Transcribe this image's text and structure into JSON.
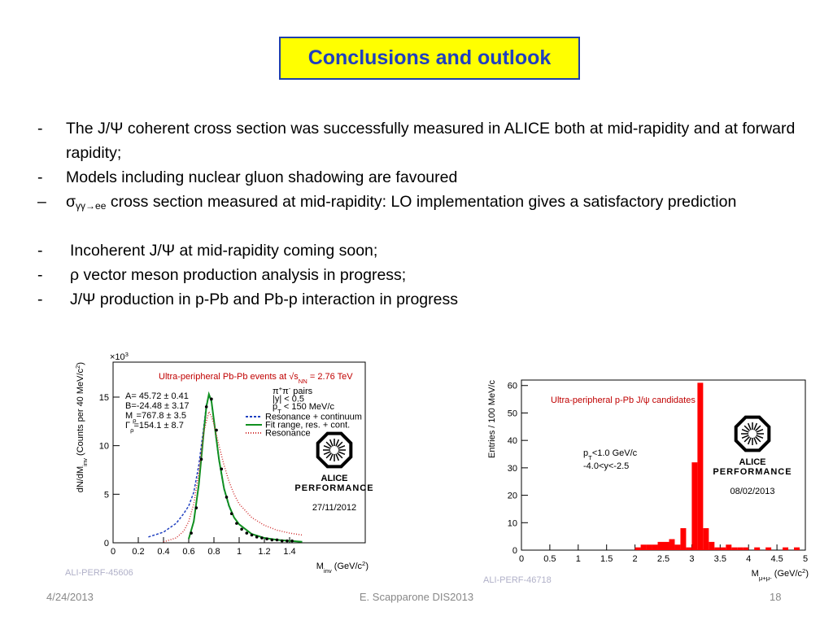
{
  "title": "Conclusions and outlook",
  "bullets": [
    {
      "marker": "-",
      "text": [
        [
          "The J/Ψ coherent cross section was successfully measured in ALICE both at mid-rapidity and at forward rapidity;",
          ""
        ]
      ]
    },
    {
      "marker": "-",
      "text": [
        [
          "Models including nuclear gluon shadowing are favoured",
          ""
        ]
      ]
    },
    {
      "marker": "–",
      "text": [
        [
          "σ",
          ""
        ],
        [
          "γγ→ee",
          "sub"
        ],
        [
          " cross section measured at mid-rapidity: LO implementation gives a satisfactory prediction",
          ""
        ]
      ]
    },
    {
      "marker": "-",
      "text": [
        [
          "Incoherent J/Ψ at mid-rapidity coming soon;",
          ""
        ]
      ]
    },
    {
      "marker": "-",
      "text": [
        [
          "ρ vector meson production analysis in progress;",
          ""
        ]
      ]
    },
    {
      "marker": "-",
      "text": [
        [
          "J/Ψ production in p-Pb and Pb-p interaction in progress",
          ""
        ]
      ]
    }
  ],
  "plots": [
    {
      "type": "line",
      "title": [
        [
          "Ultra-peripheral Pb-Pb events at √s",
          ""
        ],
        [
          "NN",
          "sub"
        ],
        [
          " = 2.76 TeV",
          ""
        ]
      ],
      "multiplier": [
        [
          "×10",
          ""
        ],
        [
          "3",
          "sup"
        ]
      ],
      "ylabel": [
        [
          "dN/dM",
          ""
        ],
        [
          "inv",
          "sub"
        ],
        [
          " (Counts per 40 MeV/c",
          ""
        ],
        [
          "2",
          "sup"
        ],
        [
          ")",
          ""
        ]
      ],
      "xlabel": [
        [
          "M",
          ""
        ],
        [
          "inv",
          "sub"
        ],
        [
          " (GeV/c",
          ""
        ],
        [
          "2",
          "sup"
        ],
        [
          ")",
          ""
        ]
      ],
      "xlim": [
        0,
        2
      ],
      "ylim": [
        0,
        18.6
      ],
      "xticks": [
        0,
        0.2,
        0.4,
        0.6,
        0.8,
        1,
        1.2,
        1.4
      ],
      "yticks": [
        0,
        5,
        10,
        15
      ],
      "stats": [
        [
          [
            "A= 45.72 ± 0.41",
            ""
          ]
        ],
        [
          [
            "B=-24.48 ± 3.17",
            ""
          ]
        ],
        [
          [
            "M",
            ""
          ],
          [
            "ρ",
            "sub"
          ],
          [
            "=767.8 ± 3.5",
            ""
          ]
        ],
        [
          [
            "Γ",
            ""
          ],
          [
            "ρ",
            "sub"
          ],
          [
            "=154.1 ± 8.7",
            ""
          ]
        ]
      ],
      "cuts": [
        [
          [
            "π",
            ""
          ],
          [
            "+",
            "sup"
          ],
          [
            "π",
            ""
          ],
          [
            "-",
            "sup"
          ],
          [
            " pairs",
            ""
          ]
        ],
        [
          [
            "|y| < 0.5",
            ""
          ]
        ],
        [
          [
            "p",
            ""
          ],
          [
            "T",
            "sub"
          ],
          [
            " < 150 MeV/c",
            ""
          ]
        ]
      ],
      "series": [
        {
          "name": "Resonance + continuum",
          "color": "#2040c0",
          "style": "dashed",
          "x": [
            0.28,
            0.4,
            0.5,
            0.56,
            0.6,
            0.64,
            0.68,
            0.72,
            0.74,
            0.76,
            0.78,
            0.8,
            0.84,
            0.88,
            0.92,
            0.96,
            1.0,
            1.1,
            1.2,
            1.3,
            1.4,
            1.5
          ],
          "y": [
            0.6,
            1.1,
            2.0,
            3.0,
            3.8,
            5.2,
            8.0,
            12.0,
            14.2,
            15.2,
            14.5,
            12.5,
            8.5,
            5.5,
            3.7,
            2.6,
            1.9,
            0.9,
            0.5,
            0.3,
            0.2,
            0.1
          ]
        },
        {
          "name": "Fit range, res. + cont.",
          "color": "#109020",
          "style": "solid",
          "x": [
            0.6,
            0.64,
            0.68,
            0.72,
            0.74,
            0.76,
            0.78,
            0.8,
            0.84,
            0.88,
            0.92,
            0.96,
            1.0,
            1.1,
            1.2,
            1.3,
            1.4,
            1.5
          ],
          "y": [
            0.4,
            2.2,
            6.0,
            11.5,
            14.0,
            15.3,
            14.6,
            12.6,
            8.6,
            5.6,
            3.8,
            2.6,
            1.9,
            0.9,
            0.5,
            0.3,
            0.2,
            0.1
          ]
        },
        {
          "name": "Resonance",
          "color": "#d03030",
          "style": "dotted",
          "x": [
            0.4,
            0.5,
            0.56,
            0.6,
            0.64,
            0.68,
            0.72,
            0.76,
            0.78,
            0.8,
            0.84,
            0.88,
            0.92,
            0.96,
            1.0,
            1.1,
            1.2,
            1.3,
            1.4,
            1.5
          ],
          "y": [
            0.1,
            0.5,
            1.2,
            2.2,
            4.0,
            7.2,
            11.5,
            13.5,
            13.0,
            12.2,
            10.0,
            8.0,
            6.3,
            5.0,
            4.0,
            2.6,
            1.8,
            1.3,
            1.0,
            0.8
          ]
        }
      ],
      "points": {
        "color": "#000000",
        "x": [
          0.62,
          0.66,
          0.7,
          0.74,
          0.78,
          0.82,
          0.86,
          0.9,
          0.94,
          0.98,
          1.02,
          1.06,
          1.1,
          1.14,
          1.18,
          1.22,
          1.26,
          1.3,
          1.34,
          1.38,
          1.42
        ],
        "y": [
          1.0,
          3.6,
          8.6,
          14.0,
          14.8,
          11.6,
          7.6,
          4.7,
          3.0,
          2.0,
          1.4,
          1.0,
          0.8,
          0.6,
          0.5,
          0.4,
          0.3,
          0.3,
          0.2,
          0.2,
          0.2
        ]
      },
      "logo": [
        "ALICE",
        "PERFORMANCE"
      ],
      "date": "27/11/2012",
      "id": "ALI-PERF-45606"
    },
    {
      "type": "histogram",
      "title": [
        [
          "Ultra-peripheral p-Pb J/ψ candidates",
          ""
        ]
      ],
      "ylabel": [
        [
          "Entries / 100 MeV/c",
          ""
        ]
      ],
      "xlabel": [
        [
          "M",
          ""
        ],
        [
          "μ+μ-",
          "sub"
        ],
        [
          " (GeV/c",
          ""
        ],
        [
          "2",
          "sup"
        ],
        [
          ")",
          ""
        ]
      ],
      "xlim": [
        0,
        5
      ],
      "ylim": [
        0,
        62
      ],
      "xticks": [
        0,
        0.5,
        1,
        1.5,
        2,
        2.5,
        3,
        3.5,
        4,
        4.5,
        5
      ],
      "yticks": [
        0,
        10,
        20,
        30,
        40,
        50,
        60
      ],
      "cuts": [
        [
          [
            "p",
            ""
          ],
          [
            "T",
            "sub"
          ],
          [
            "<1.0 GeV/c",
            ""
          ]
        ],
        [
          [
            "-4.0<y<-2.5",
            ""
          ]
        ]
      ],
      "color": "#ff0000",
      "bins": [
        2.0,
        2.1,
        2.2,
        2.3,
        2.4,
        2.5,
        2.6,
        2.7,
        2.8,
        2.9,
        3.0,
        3.1,
        3.2,
        3.3,
        3.4,
        3.5,
        3.6,
        3.7,
        3.8,
        3.9,
        4.0,
        4.1,
        4.2,
        4.3,
        4.4,
        4.5,
        4.6,
        4.7,
        4.8,
        4.9
      ],
      "values": [
        1,
        2,
        2,
        2,
        3,
        3,
        4,
        2,
        8,
        1,
        32,
        61,
        8,
        3,
        1,
        1,
        2,
        1,
        1,
        1,
        0,
        1,
        0,
        1,
        0,
        0,
        1,
        0,
        1
      ],
      "logo": [
        "ALICE",
        "PERFORMANCE"
      ],
      "date": "08/02/2013",
      "id": "ALI-PERF-46718"
    }
  ],
  "footer": {
    "date": "4/24/2013",
    "center": "E. Scapparone DIS2013",
    "page": "18"
  }
}
